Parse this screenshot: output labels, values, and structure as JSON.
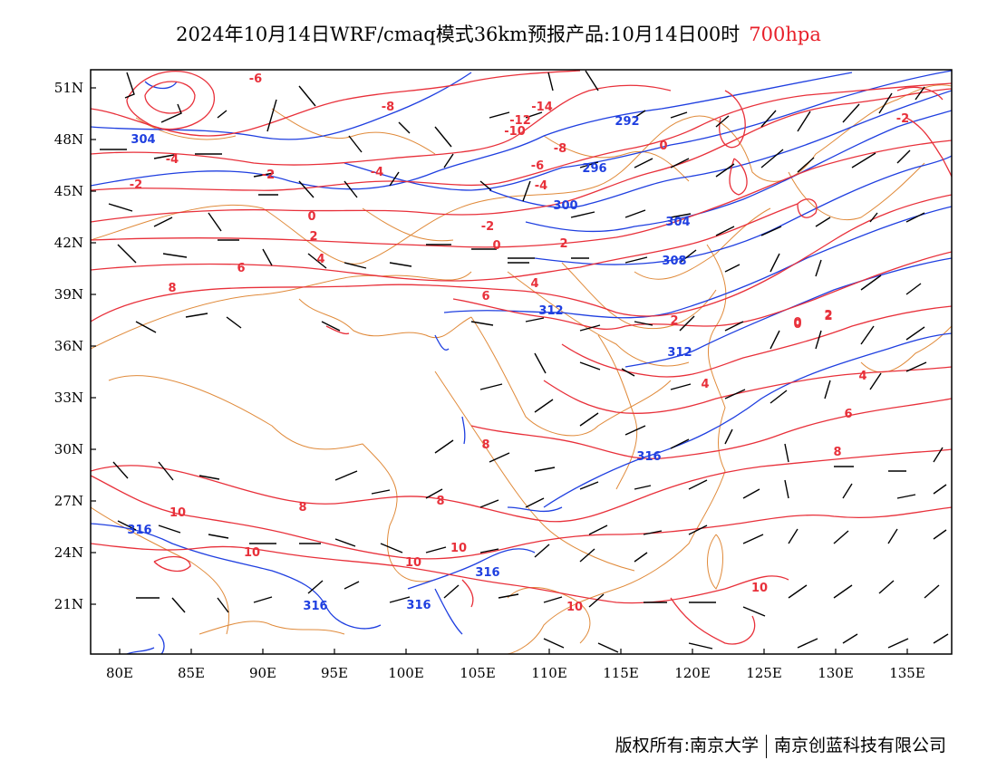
{
  "header": {
    "title": "2024年10月14日WRF/cmaq模式36km预报产品:10月14日00时",
    "level": "700hpa"
  },
  "axes": {
    "lat_labels": [
      "51N",
      "48N",
      "45N",
      "42N",
      "39N",
      "36N",
      "33N",
      "30N",
      "27N",
      "24N",
      "21N"
    ],
    "lon_labels": [
      "80E",
      "85E",
      "90E",
      "95E",
      "100E",
      "105E",
      "110E",
      "115E",
      "120E",
      "125E",
      "130E",
      "135E"
    ]
  },
  "colors": {
    "temperature_contour": "#e8303a",
    "height_contour": "#1f3fe0",
    "boundary": "#e08a3a",
    "wind_barb": "#000000"
  },
  "temperature_labels": [
    "-6",
    "-8",
    "-14",
    "-12",
    "-10",
    "-8",
    "-6",
    "-4",
    "-4",
    "-2",
    "-2",
    "0",
    "-2",
    "-4",
    "0",
    "0",
    "-2",
    "2",
    "2",
    "0",
    "2",
    "6",
    "4",
    "4",
    "6",
    "8",
    "4",
    "2",
    "0",
    "2",
    "4",
    "6",
    "8",
    "8",
    "8",
    "8",
    "10",
    "10",
    "10",
    "10",
    "10",
    "10"
  ],
  "height_labels": [
    "304",
    "292",
    "296",
    "300",
    "304",
    "308",
    "312",
    "312",
    "316",
    "316",
    "316",
    "316",
    "316"
  ],
  "footer": {
    "copyright_left": "版权所有:南京大学",
    "copyright_right": "南京创蓝科技有限公司"
  }
}
